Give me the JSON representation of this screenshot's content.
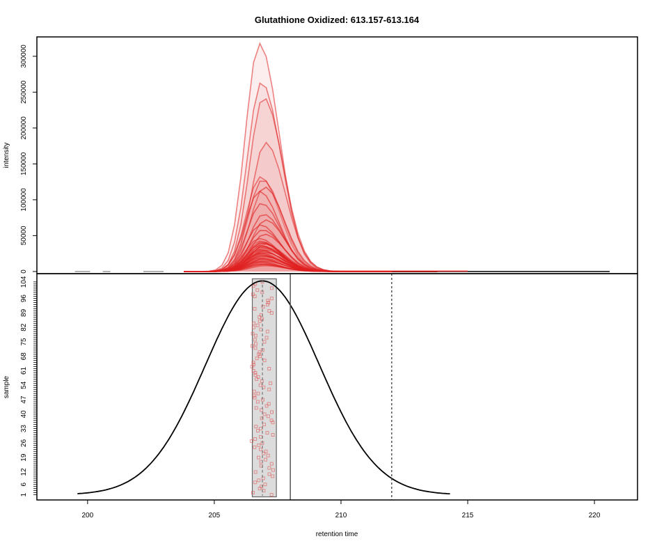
{
  "chart_data": {
    "title": "Glutathione Oxidized: 613.157-613.164",
    "xlabel": "retention time",
    "x_ticks": [
      200,
      205,
      210,
      215,
      220
    ],
    "xlim": [
      198,
      221.7
    ],
    "panels": [
      {
        "type": "area",
        "ylabel": "intensity",
        "y_ticks": [
          0,
          50000,
          100000,
          150000,
          200000,
          250000,
          300000
        ],
        "ylim": [
          -3000,
          327000
        ],
        "fill_color": "#f0a0a0",
        "line_color": "#e02020",
        "peak_center": 206.9,
        "peak_heights": [
          318000,
          264000,
          243000,
          180000,
          132000,
          128000,
          118000,
          112000,
          95000,
          80000,
          72000,
          65000,
          58000,
          52000,
          46000,
          40000,
          35000,
          30000,
          26000,
          22000,
          18000,
          14000,
          10000
        ],
        "baseline_end": 220.6,
        "noise_segments": [
          [
            199.5,
            200.1
          ],
          [
            200.6,
            200.9
          ],
          [
            202.2,
            203.0
          ]
        ]
      },
      {
        "type": "scatter",
        "ylabel": "sample",
        "y_ticks": [
          1,
          6,
          12,
          19,
          26,
          33,
          40,
          47,
          54,
          61,
          68,
          75,
          82,
          89,
          96,
          104
        ],
        "ylim": [
          -1.5,
          108
        ],
        "point_color": "#e06060",
        "samples": 104,
        "rt_box": [
          206.5,
          207.45
        ],
        "vline_solid": 208.0,
        "vline_dotted": 212.0,
        "density_center": 206.9,
        "density_sd": 2.25,
        "density_range": [
          199.6,
          214.3
        ]
      }
    ]
  }
}
